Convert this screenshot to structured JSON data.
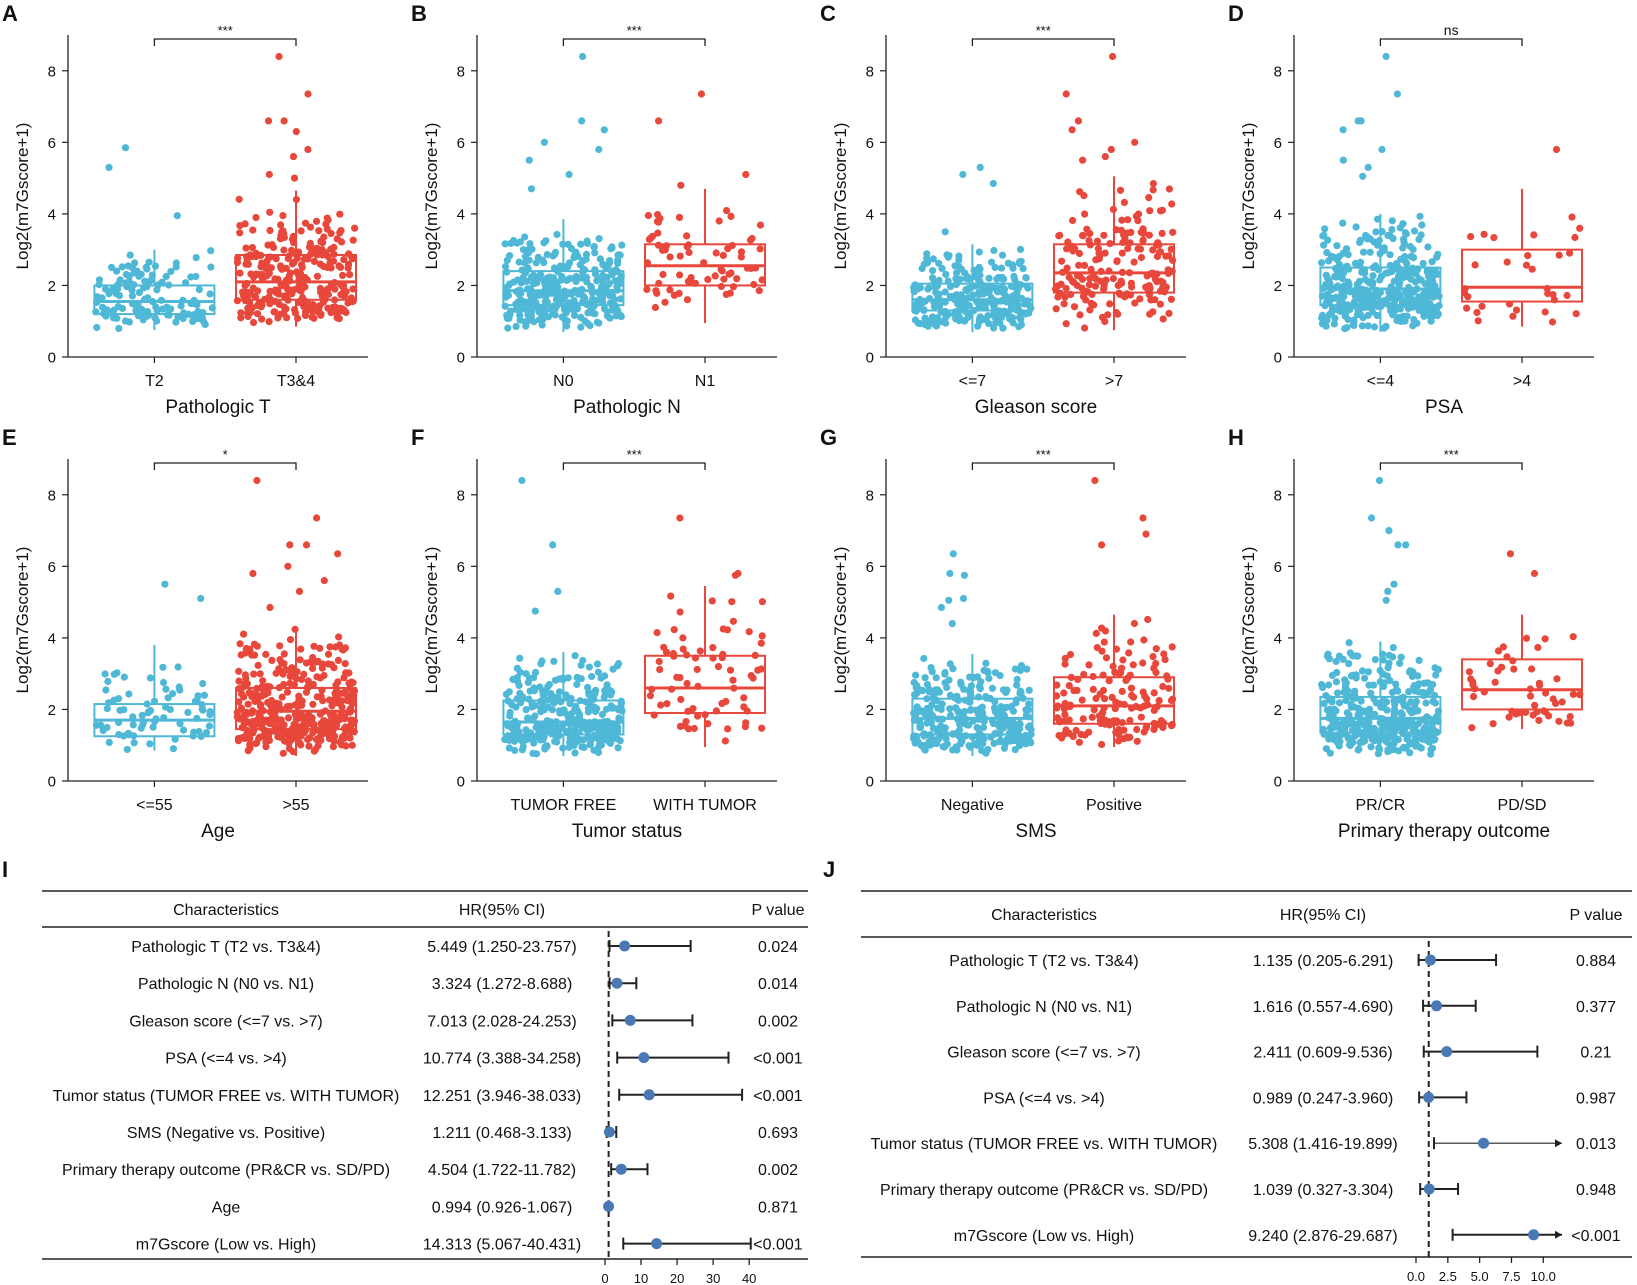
{
  "colors": {
    "low": "#4EB8D6",
    "high": "#E8473B",
    "forest_point": "#4A78B5",
    "axis": "#222222"
  },
  "chart_data": [
    {
      "panel": "A",
      "type": "box",
      "xlabel": "Pathologic T",
      "ylabel": "Log2(m7Gscore+1)",
      "categories": [
        "T2",
        "T3&4"
      ],
      "ylim": [
        0,
        9
      ],
      "yticks": [
        0,
        2,
        4,
        6,
        8
      ],
      "significance": "***",
      "boxes": [
        {
          "q1": 1.2,
          "median": 1.55,
          "q3": 2.0,
          "whisker_low": 0.75,
          "whisker_high": 3.0,
          "n_points": 130,
          "outliers": [
            5.85,
            5.3,
            3.95
          ]
        },
        {
          "q1": 1.6,
          "median": 2.1,
          "q3": 2.85,
          "whisker_low": 0.85,
          "whisker_high": 4.65,
          "n_points": 280,
          "outliers": [
            8.4,
            7.35,
            6.6,
            6.6,
            6.3,
            5.8,
            5.6,
            5.1,
            5.0
          ]
        }
      ]
    },
    {
      "panel": "B",
      "type": "box",
      "xlabel": "Pathologic N",
      "ylabel": "Log2(m7Gscore+1)",
      "categories": [
        "N0",
        "N1"
      ],
      "ylim": [
        0,
        9
      ],
      "yticks": [
        0,
        2,
        4,
        6,
        8
      ],
      "significance": "***",
      "boxes": [
        {
          "q1": 1.45,
          "median": 1.85,
          "q3": 2.4,
          "whisker_low": 0.7,
          "whisker_high": 3.85,
          "n_points": 330,
          "outliers": [
            8.4,
            6.6,
            6.35,
            6.0,
            5.8,
            5.5,
            5.1,
            4.7
          ]
        },
        {
          "q1": 2.0,
          "median": 2.55,
          "q3": 3.15,
          "whisker_low": 0.95,
          "whisker_high": 4.7,
          "n_points": 70,
          "outliers": [
            7.35,
            6.6,
            5.1,
            4.8
          ]
        }
      ]
    },
    {
      "panel": "C",
      "type": "box",
      "xlabel": "Gleason score",
      "ylabel": "Log2(m7Gscore+1)",
      "categories": [
        "<=7",
        ">7"
      ],
      "ylim": [
        0,
        9
      ],
      "yticks": [
        0,
        2,
        4,
        6,
        8
      ],
      "significance": "***",
      "boxes": [
        {
          "q1": 1.3,
          "median": 1.6,
          "q3": 2.05,
          "whisker_low": 0.7,
          "whisker_high": 3.15,
          "n_points": 260,
          "outliers": [
            5.3,
            5.1,
            4.85,
            3.5
          ]
        },
        {
          "q1": 1.8,
          "median": 2.35,
          "q3": 3.15,
          "whisker_low": 0.75,
          "whisker_high": 5.05,
          "n_points": 180,
          "outliers": [
            8.4,
            7.35,
            6.6,
            6.35,
            6.0,
            5.8,
            5.6,
            5.5
          ]
        }
      ]
    },
    {
      "panel": "D",
      "type": "box",
      "xlabel": "PSA",
      "ylabel": "Log2(m7Gscore+1)",
      "categories": [
        "<=4",
        ">4"
      ],
      "ylim": [
        0,
        9
      ],
      "yticks": [
        0,
        2,
        4,
        6,
        8
      ],
      "significance": "ns",
      "boxes": [
        {
          "q1": 1.45,
          "median": 1.9,
          "q3": 2.5,
          "whisker_low": 0.7,
          "whisker_high": 4.0,
          "n_points": 370,
          "outliers": [
            8.4,
            7.35,
            6.6,
            6.6,
            6.35,
            5.8,
            5.5,
            5.3,
            5.05
          ]
        },
        {
          "q1": 1.55,
          "median": 1.95,
          "q3": 3.0,
          "whisker_low": 0.85,
          "whisker_high": 4.7,
          "n_points": 32,
          "outliers": [
            5.8
          ]
        }
      ]
    },
    {
      "panel": "E",
      "type": "box",
      "xlabel": "Age",
      "ylabel": "Log2(m7Gscore+1)",
      "categories": [
        "<=55",
        ">55"
      ],
      "ylim": [
        0,
        9
      ],
      "yticks": [
        0,
        2,
        4,
        6,
        8
      ],
      "significance": "*",
      "boxes": [
        {
          "q1": 1.25,
          "median": 1.7,
          "q3": 2.15,
          "whisker_low": 0.85,
          "whisker_high": 3.8,
          "n_points": 75,
          "outliers": [
            5.5,
            5.1
          ]
        },
        {
          "q1": 1.45,
          "median": 1.95,
          "q3": 2.6,
          "whisker_low": 0.7,
          "whisker_high": 4.25,
          "n_points": 380,
          "outliers": [
            8.4,
            7.35,
            6.6,
            6.6,
            6.35,
            6.0,
            5.8,
            5.6,
            5.3,
            4.85
          ]
        }
      ]
    },
    {
      "panel": "F",
      "type": "box",
      "xlabel": "Tumor status",
      "ylabel": "Log2(m7Gscore+1)",
      "categories": [
        "TUMOR FREE",
        "WITH TUMOR"
      ],
      "ylim": [
        0,
        9
      ],
      "yticks": [
        0,
        2,
        4,
        6,
        8
      ],
      "significance": "***",
      "boxes": [
        {
          "q1": 1.3,
          "median": 1.65,
          "q3": 2.25,
          "whisker_low": 0.7,
          "whisker_high": 3.6,
          "n_points": 330,
          "outliers": [
            8.4,
            6.6,
            5.3,
            4.75
          ]
        },
        {
          "q1": 1.9,
          "median": 2.6,
          "q3": 3.5,
          "whisker_low": 0.95,
          "whisker_high": 5.45,
          "n_points": 70,
          "outliers": [
            7.35,
            5.8,
            5.75
          ]
        }
      ]
    },
    {
      "panel": "G",
      "type": "box",
      "xlabel": "SMS",
      "ylabel": "Log2(m7Gscore+1)",
      "categories": [
        "Negative",
        "Positive"
      ],
      "ylim": [
        0,
        9
      ],
      "yticks": [
        0,
        2,
        4,
        6,
        8
      ],
      "significance": "***",
      "boxes": [
        {
          "q1": 1.3,
          "median": 1.75,
          "q3": 2.3,
          "whisker_low": 0.7,
          "whisker_high": 3.55,
          "n_points": 300,
          "outliers": [
            6.35,
            5.8,
            5.75,
            5.1,
            5.05,
            4.85,
            4.4
          ]
        },
        {
          "q1": 1.6,
          "median": 2.1,
          "q3": 2.9,
          "whisker_low": 0.95,
          "whisker_high": 4.65,
          "n_points": 150,
          "outliers": [
            8.4,
            7.35,
            6.9,
            6.6
          ]
        }
      ]
    },
    {
      "panel": "H",
      "type": "box",
      "xlabel": "Primary therapy outcome",
      "ylabel": "Log2(m7Gscore+1)",
      "categories": [
        "PR/CR",
        "PD/SD"
      ],
      "ylim": [
        0,
        9
      ],
      "yticks": [
        0,
        2,
        4,
        6,
        8
      ],
      "significance": "***",
      "boxes": [
        {
          "q1": 1.35,
          "median": 1.75,
          "q3": 2.35,
          "whisker_low": 0.7,
          "whisker_high": 3.9,
          "n_points": 360,
          "outliers": [
            8.4,
            7.35,
            7.0,
            6.6,
            6.6,
            5.5,
            5.3,
            5.05
          ]
        },
        {
          "q1": 2.0,
          "median": 2.55,
          "q3": 3.4,
          "whisker_low": 1.45,
          "whisker_high": 4.65,
          "n_points": 50,
          "outliers": [
            6.35,
            5.8
          ]
        }
      ]
    },
    {
      "panel": "I",
      "type": "forest",
      "headers": [
        "Characteristics",
        "HR(95% CI)",
        "P value"
      ],
      "xticks": [
        0,
        10,
        20,
        30,
        40
      ],
      "xlim": [
        0,
        43
      ],
      "reference": 1,
      "rows": [
        {
          "label": "Pathologic T (T2 vs. T3&4)",
          "hr_text": "5.449 (1.250-23.757)",
          "p": "0.024",
          "hr": 5.449,
          "lo": 1.25,
          "hi": 23.757
        },
        {
          "label": "Pathologic N (N0 vs. N1)",
          "hr_text": "3.324 (1.272-8.688)",
          "p": "0.014",
          "hr": 3.324,
          "lo": 1.272,
          "hi": 8.688
        },
        {
          "label": "Gleason score (<=7 vs. >7)",
          "hr_text": "7.013 (2.028-24.253)",
          "p": "0.002",
          "hr": 7.013,
          "lo": 2.028,
          "hi": 24.253
        },
        {
          "label": "PSA (<=4 vs. >4)",
          "hr_text": "10.774 (3.388-34.258)",
          "p": "<0.001",
          "hr": 10.774,
          "lo": 3.388,
          "hi": 34.258
        },
        {
          "label": "Tumor status (TUMOR FREE vs. WITH TUMOR)",
          "hr_text": "12.251 (3.946-38.033)",
          "p": "<0.001",
          "hr": 12.251,
          "lo": 3.946,
          "hi": 38.033
        },
        {
          "label": "SMS (Negative vs. Positive)",
          "hr_text": "1.211 (0.468-3.133)",
          "p": "0.693",
          "hr": 1.211,
          "lo": 0.468,
          "hi": 3.133
        },
        {
          "label": "Primary therapy outcome (PR&CR vs. SD/PD)",
          "hr_text": "4.504 (1.722-11.782)",
          "p": "0.002",
          "hr": 4.504,
          "lo": 1.722,
          "hi": 11.782
        },
        {
          "label": "Age",
          "hr_text": "0.994 (0.926-1.067)",
          "p": "0.871",
          "hr": 0.994,
          "lo": 0.926,
          "hi": 1.067
        },
        {
          "label": "m7Gscore (Low vs. High)",
          "hr_text": "14.313 (5.067-40.431)",
          "p": "<0.001",
          "hr": 14.313,
          "lo": 5.067,
          "hi": 40.431
        }
      ]
    },
    {
      "panel": "J",
      "type": "forest",
      "headers": [
        "Characteristics",
        "HR(95% CI)",
        "P value"
      ],
      "xticks": [
        0.0,
        2.5,
        5.0,
        7.5,
        10.0
      ],
      "xtick_labels": [
        "0.0",
        "2.5",
        "5.0",
        "7.5",
        "10.0"
      ],
      "xlim": [
        0,
        11
      ],
      "reference": 1,
      "rows": [
        {
          "label": "Pathologic T (T2 vs. T3&4)",
          "hr_text": "1.135 (0.205-6.291)",
          "p": "0.884",
          "hr": 1.135,
          "lo": 0.205,
          "hi": 6.291
        },
        {
          "label": "Pathologic N (N0 vs. N1)",
          "hr_text": "1.616 (0.557-4.690)",
          "p": "0.377",
          "hr": 1.616,
          "lo": 0.557,
          "hi": 4.69
        },
        {
          "label": "Gleason score (<=7 vs. >7)",
          "hr_text": "2.411 (0.609-9.536)",
          "p": "0.21",
          "hr": 2.411,
          "lo": 0.609,
          "hi": 9.536
        },
        {
          "label": "PSA (<=4 vs. >4)",
          "hr_text": "0.989 (0.247-3.960)",
          "p": "0.987",
          "hr": 0.989,
          "lo": 0.247,
          "hi": 3.96
        },
        {
          "label": "Tumor status (TUMOR FREE vs. WITH TUMOR)",
          "hr_text": "5.308 (1.416-19.899)",
          "p": "0.013",
          "hr": 5.308,
          "lo": 1.416,
          "hi": 19.899
        },
        {
          "label": "Primary therapy outcome (PR&CR vs. SD/PD)",
          "hr_text": "1.039 (0.327-3.304)",
          "p": "0.948",
          "hr": 1.039,
          "lo": 0.327,
          "hi": 3.304
        },
        {
          "label": "m7Gscore (Low vs. High)",
          "hr_text": "9.240 (2.876-29.687)",
          "p": "<0.001",
          "hr": 9.24,
          "lo": 2.876,
          "hi": 29.687
        }
      ]
    }
  ]
}
